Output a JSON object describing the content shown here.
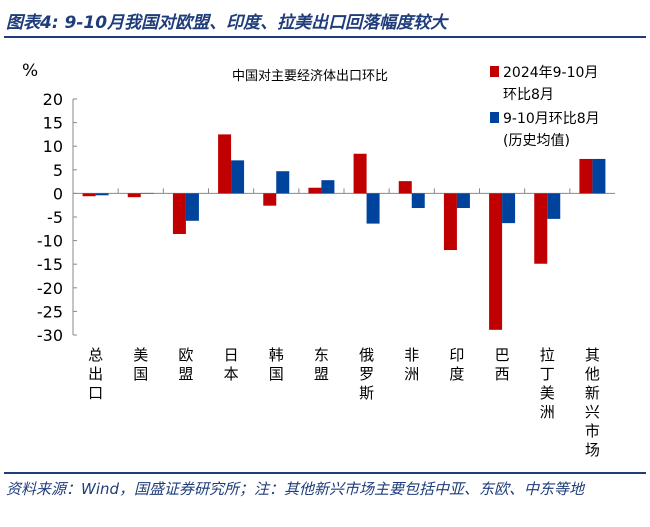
{
  "figure_title": "图表4:  9-10月我国对欧盟、印度、拉美出口回落幅度较大",
  "source": "资料来源：Wind，国盛证券研究所；注：其他新兴市场主要包括中亚、东欧、中东等地",
  "chart_data": {
    "type": "bar",
    "title": "中国对主要经济体出口环比",
    "ylabel": "%",
    "ylim": [
      -30,
      20
    ],
    "yticks": [
      20,
      15,
      10,
      5,
      0,
      -5,
      -10,
      -15,
      -20,
      -25,
      -30
    ],
    "grid": false,
    "legend_position": "top-right",
    "categories": [
      "总出口",
      "美国",
      "欧盟",
      "日本",
      "韩国",
      "东盟",
      "俄罗斯",
      "非洲",
      "印度",
      "巴西",
      "拉丁美洲",
      "其他新兴市场"
    ],
    "series": [
      {
        "name": "2024年9-10月环比8月",
        "color": "#c00000",
        "values": [
          -0.6,
          -0.8,
          -8.6,
          12.5,
          -2.6,
          1.2,
          8.4,
          2.6,
          -12.0,
          -28.9,
          -14.9,
          7.3
        ]
      },
      {
        "name": "9-10月环比8月(历史均值)",
        "color": "#00439c",
        "values": [
          -0.4,
          0.1,
          -5.8,
          7.0,
          4.7,
          2.8,
          -6.4,
          -3.1,
          -3.1,
          -6.3,
          -5.4,
          7.3
        ]
      }
    ],
    "legend_lines": [
      [
        "2024年9-10月",
        "环比8月"
      ],
      [
        "9-10月环比8月",
        "(历史均值)"
      ]
    ]
  }
}
